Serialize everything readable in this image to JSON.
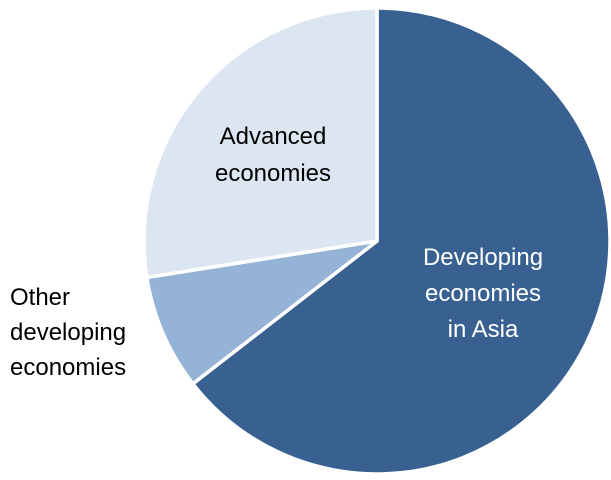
{
  "chart_data": {
    "type": "pie",
    "title": "",
    "slices": [
      {
        "label": "Developing economies in Asia",
        "label_lines": [
          "Developing",
          "economies",
          "in Asia"
        ],
        "value": 64.5,
        "color": "#386192",
        "label_color": "#ffffff"
      },
      {
        "label": "Other developing economies",
        "label_lines": [
          "Other",
          "developing",
          "economies"
        ],
        "value": 8.0,
        "color": "#95b3d7",
        "label_color": "#000000"
      },
      {
        "label": "Advanced economies",
        "label_lines": [
          "Advanced",
          "economies"
        ],
        "value": 27.5,
        "color": "#dce6f2",
        "label_color": "#000000"
      }
    ],
    "start_angle_deg": 0,
    "direction": "clockwise",
    "slice_border_color": "#ffffff",
    "legend": "none",
    "labels": "category names"
  }
}
